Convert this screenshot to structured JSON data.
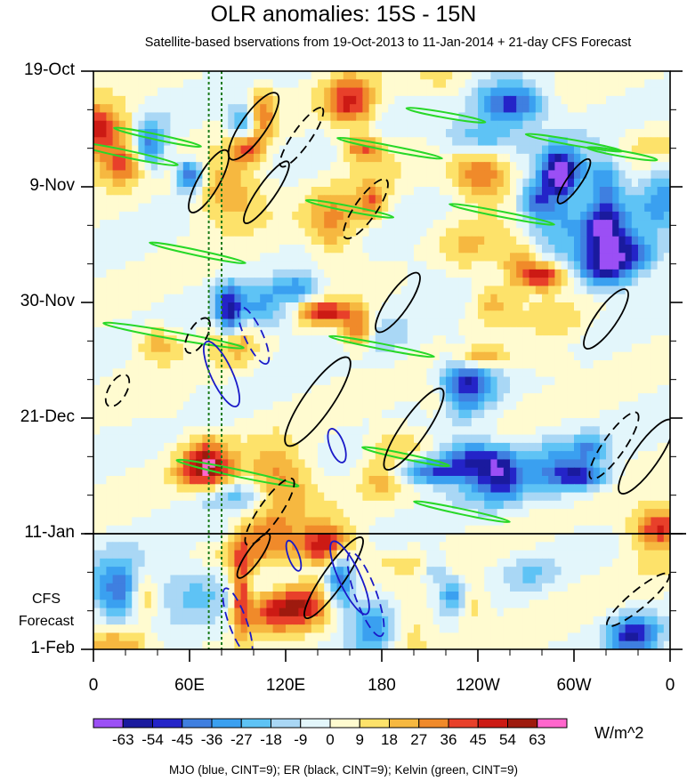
{
  "title": "OLR anomalies: 15S - 15N",
  "subtitle": "Satellite-based bservations from 19-Oct-2013 to 11-Jan-2014 + 21-day CFS Forecast",
  "forecast_label_line1": "CFS",
  "forecast_label_line2": "Forecast",
  "units": "W/m^2",
  "legend_text": "MJO (blue, CINT=9); ER (black, CINT=9); Kelvin (green, CINT=9)",
  "chart_data": {
    "type": "heatmap",
    "title": "OLR anomalies: 15S - 15N",
    "subtitle": "Satellite-based bservations from 19-Oct-2013 to 11-Jan-2014 + 21-day CFS Forecast",
    "x_ticks": [
      "0",
      "60E",
      "120E",
      "180",
      "120W",
      "60W",
      "0"
    ],
    "x_tick_degrees": [
      0,
      60,
      120,
      180,
      240,
      300,
      360
    ],
    "xlim": [
      0,
      360
    ],
    "y_ticks": [
      "19-Oct",
      "9-Nov",
      "30-Nov",
      "21-Dec",
      "11-Jan",
      "1-Feb"
    ],
    "y_tick_days": [
      0,
      21,
      42,
      63,
      84,
      105
    ],
    "ylim_days": [
      0,
      105
    ],
    "forecast_start_day": 84,
    "colorbar_levels": [
      -63,
      -54,
      -45,
      -36,
      -27,
      -18,
      -9,
      0,
      9,
      18,
      27,
      36,
      45,
      54,
      63
    ],
    "colorbar_labels": [
      "-63",
      "-54",
      "-45",
      "-36",
      "-27",
      "-18",
      "-9",
      "0",
      "9",
      "18",
      "27",
      "36",
      "45",
      "54",
      "63"
    ],
    "colorbar_colors": [
      "#9b4ff5",
      "#1a1a9e",
      "#2424c8",
      "#3f7fe0",
      "#3aa0f0",
      "#5ec3f5",
      "#a9d7f5",
      "#e3f6fb",
      "#fffbd0",
      "#fde26a",
      "#f6b840",
      "#f08a2a",
      "#e8402a",
      "#cc1a14",
      "#9e1a0e",
      "#ff66cc"
    ],
    "units": "W/m^2",
    "reference_lines_deg": [
      72,
      80
    ],
    "contour_series": [
      {
        "name": "MJO",
        "color": "#1a1ac8",
        "cint": 9
      },
      {
        "name": "ER",
        "color": "#000000",
        "cint": 9
      },
      {
        "name": "Kelvin",
        "color": "#28d828",
        "cint": 9
      }
    ],
    "legend_text": "MJO (blue, CINT=9); ER (black, CINT=9); Kelvin (green, CINT=9)"
  }
}
